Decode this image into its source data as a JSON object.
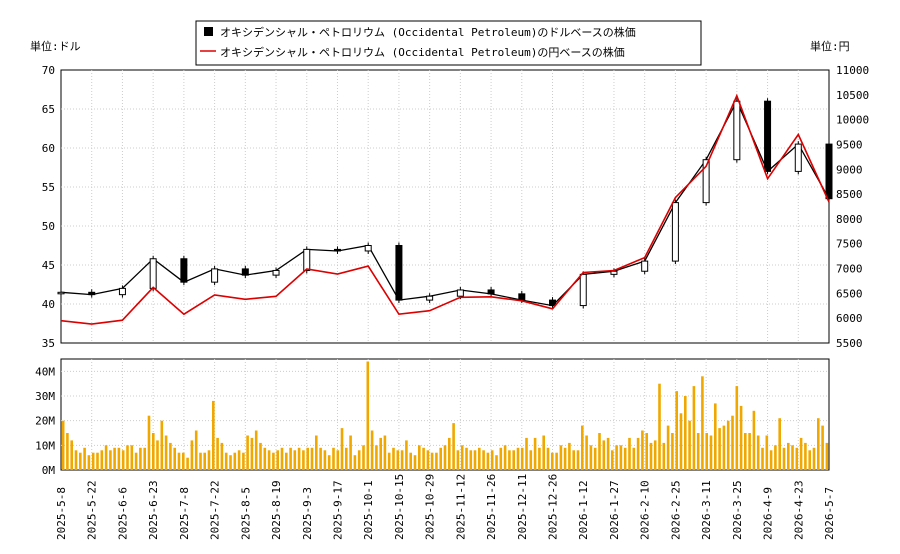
{
  "chart_data": {
    "type": "line",
    "legend": {
      "placement": "top-center",
      "items": [
        {
          "label": "オキシデンシャル・ペトロリウム (Occidental Petroleum)のドルベースの株価",
          "color": "#000000",
          "marker": "square"
        },
        {
          "label": "オキシデンシャル・ペトロリウム (Occidental Petroleum)の円ベースの株価",
          "color": "#dd0000",
          "marker": "line"
        }
      ]
    },
    "ylabel_left": "単位:ドル",
    "ylabel_right": "単位:円",
    "ylim_left": [
      35,
      70
    ],
    "ylim_right": [
      5500,
      11000
    ],
    "yticks_left": [
      "35",
      "40",
      "45",
      "50",
      "55",
      "60",
      "65",
      "70"
    ],
    "yticks_right": [
      "5500",
      "6000",
      "6500",
      "7000",
      "7500",
      "8000",
      "8500",
      "9000",
      "9500",
      "10000",
      "10500",
      "11000"
    ],
    "x_dates": [
      "2025-5-8",
      "2025-5-22",
      "2025-6-6",
      "2025-6-23",
      "2025-7-8",
      "2025-7-22",
      "2025-8-5",
      "2025-8-19",
      "2025-9-3",
      "2025-9-17",
      "2025-10-1",
      "2025-10-15",
      "2025-10-29",
      "2025-11-12",
      "2025-11-26",
      "2025-12-11",
      "2025-12-26",
      "2026-1-12",
      "2026-1-27",
      "2026-2-10",
      "2026-2-25",
      "2026-3-11",
      "2026-3-25",
      "2026-4-9",
      "2026-4-23",
      "2026-5-7"
    ],
    "usd_close": [
      41.5,
      41.2,
      42.0,
      45.8,
      42.8,
      44.5,
      43.7,
      44.3,
      47.0,
      46.8,
      47.5,
      40.5,
      41.0,
      41.8,
      41.3,
      40.5,
      39.8,
      43.8,
      44.2,
      45.5,
      53.0,
      58.5,
      66.0,
      57.0,
      60.5,
      53.5
    ],
    "jpy_close": [
      5950,
      5880,
      5960,
      6620,
      6080,
      6470,
      6380,
      6440,
      6990,
      6890,
      7050,
      6080,
      6150,
      6420,
      6430,
      6350,
      6190,
      6920,
      6960,
      7220,
      8430,
      9060,
      10480,
      8810,
      9700,
      8340
    ],
    "volume_axis": {
      "ylim": [
        0,
        45
      ],
      "unit": "M",
      "ticks": [
        "0M",
        "10M",
        "20M",
        "30M",
        "40M"
      ]
    },
    "volume_millions": [
      20,
      15,
      12,
      8,
      7,
      9,
      6,
      7,
      7,
      8,
      10,
      8,
      9,
      9,
      8,
      10,
      10,
      7,
      9,
      9,
      22,
      15,
      12,
      20,
      14,
      11,
      9,
      7,
      7,
      5,
      12,
      16,
      7,
      7,
      8,
      28,
      13,
      11,
      7,
      6,
      7,
      8,
      7,
      14,
      13,
      16,
      11,
      9,
      8,
      7,
      8,
      9,
      7,
      9,
      8,
      9,
      8,
      9,
      9,
      14,
      9,
      8,
      6,
      9,
      8,
      17,
      9,
      14,
      6,
      8,
      10,
      44,
      16,
      10,
      13,
      14,
      7,
      9,
      8,
      8,
      12,
      7,
      6,
      10,
      9,
      8,
      7,
      7,
      9,
      10,
      13,
      19,
      8,
      10,
      9,
      8,
      8,
      9,
      8,
      7,
      8,
      6,
      9,
      10,
      8,
      8,
      9,
      9,
      13,
      8,
      13,
      9,
      14,
      9,
      7,
      7,
      10,
      9,
      11,
      8,
      8,
      18,
      14,
      10,
      9,
      15,
      12,
      13,
      8,
      10,
      10,
      9,
      13,
      9,
      13,
      16,
      15,
      11,
      12,
      35,
      11,
      18,
      15,
      32,
      23,
      30,
      20,
      34,
      15,
      38,
      15,
      14,
      27,
      17,
      18,
      20,
      22,
      34,
      26,
      15,
      15,
      24,
      14,
      9,
      14,
      8,
      10,
      21,
      9,
      11,
      10,
      9,
      13,
      11,
      8,
      9,
      21,
      18,
      11
    ]
  }
}
